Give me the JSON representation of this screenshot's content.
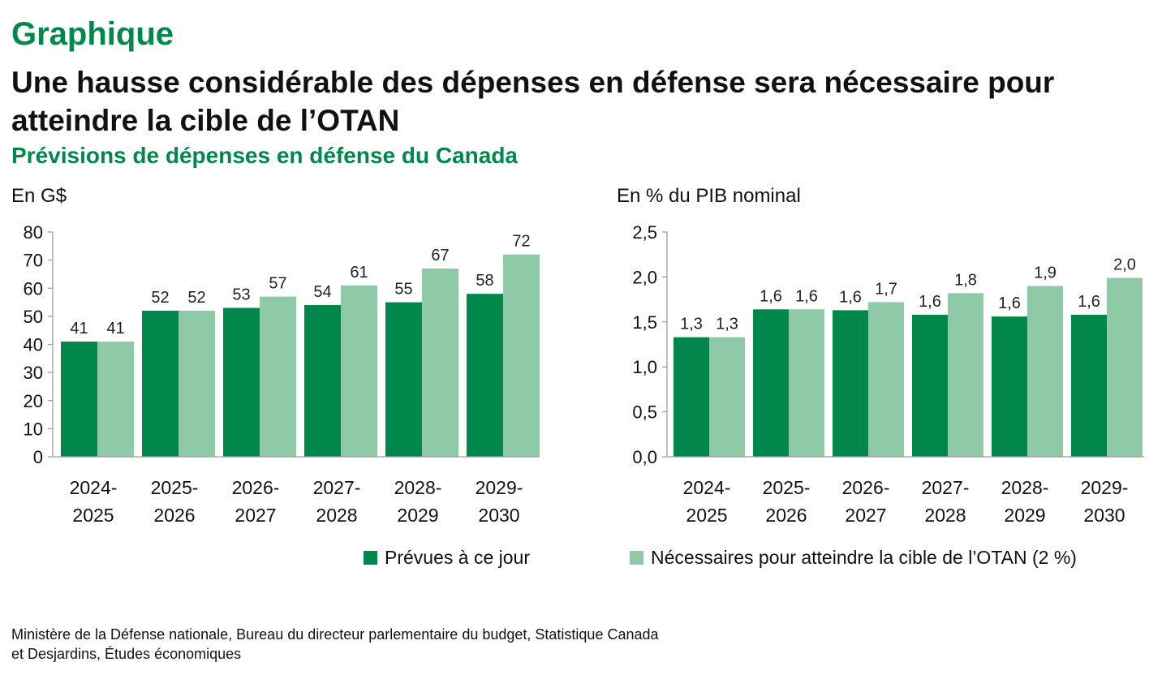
{
  "header": {
    "kicker": "Graphique",
    "title": "Une hausse considérable des dépenses en défense sera nécessaire pour atteindre la cible de l’OTAN",
    "subtitle": "Prévisions de dépenses en défense du Canada"
  },
  "colors": {
    "planned": "#00874a",
    "required": "#8ecaa6"
  },
  "legend": {
    "planned": "Prévues à ce jour",
    "required": "Nécessaires pour atteindre la cible de l’OTAN (2 %)"
  },
  "source": {
    "line1": "Ministère de la Défense nationale, Bureau du directeur parlementaire du budget, Statistique Canada",
    "line2": "et Desjardins, Études économiques"
  },
  "chart_data": [
    {
      "type": "bar",
      "ylabel": "En G$",
      "categories": [
        [
          "2024-",
          "2025"
        ],
        [
          "2025-",
          "2026"
        ],
        [
          "2026-",
          "2027"
        ],
        [
          "2027-",
          "2028"
        ],
        [
          "2028-",
          "2029"
        ],
        [
          "2029-",
          "2030"
        ]
      ],
      "series": [
        {
          "name": "Prévues à ce jour",
          "values": [
            41,
            52,
            53,
            54,
            55,
            58
          ]
        },
        {
          "name": "Nécessaires pour atteindre la cible de l’OTAN (2 %)",
          "values": [
            41,
            52,
            57,
            61,
            67,
            72
          ]
        }
      ],
      "ylim": [
        0,
        80
      ],
      "yticks": [
        0,
        10,
        20,
        30,
        40,
        50,
        60,
        70,
        80
      ],
      "ytick_labels": [
        "0",
        "10",
        "20",
        "30",
        "40",
        "50",
        "60",
        "70",
        "80"
      ],
      "data_labels": [
        [
          "41",
          "52",
          "53",
          "54",
          "55",
          "58"
        ],
        [
          "41",
          "52",
          "57",
          "61",
          "67",
          "72"
        ]
      ]
    },
    {
      "type": "bar",
      "ylabel": "En % du PIB nominal",
      "categories": [
        [
          "2024-",
          "2025"
        ],
        [
          "2025-",
          "2026"
        ],
        [
          "2026-",
          "2027"
        ],
        [
          "2027-",
          "2028"
        ],
        [
          "2028-",
          "2029"
        ],
        [
          "2029-",
          "2030"
        ]
      ],
      "series": [
        {
          "name": "Prévues à ce jour",
          "values": [
            1.33,
            1.64,
            1.63,
            1.58,
            1.56,
            1.58
          ]
        },
        {
          "name": "Nécessaires pour atteindre la cible de l’OTAN (2 %)",
          "values": [
            1.33,
            1.64,
            1.72,
            1.82,
            1.9,
            1.99
          ]
        }
      ],
      "ylim": [
        0,
        2.5
      ],
      "yticks": [
        0,
        0.5,
        1.0,
        1.5,
        2.0,
        2.5
      ],
      "ytick_labels": [
        "0,0",
        "0,5",
        "1,0",
        "1,5",
        "2,0",
        "2,5"
      ],
      "data_labels": [
        [
          "1,3",
          "1,6",
          "1,6",
          "1,6",
          "1,6",
          "1,6"
        ],
        [
          "1,3",
          "1,6",
          "1,7",
          "1,8",
          "1,9",
          "2,0"
        ]
      ]
    }
  ]
}
